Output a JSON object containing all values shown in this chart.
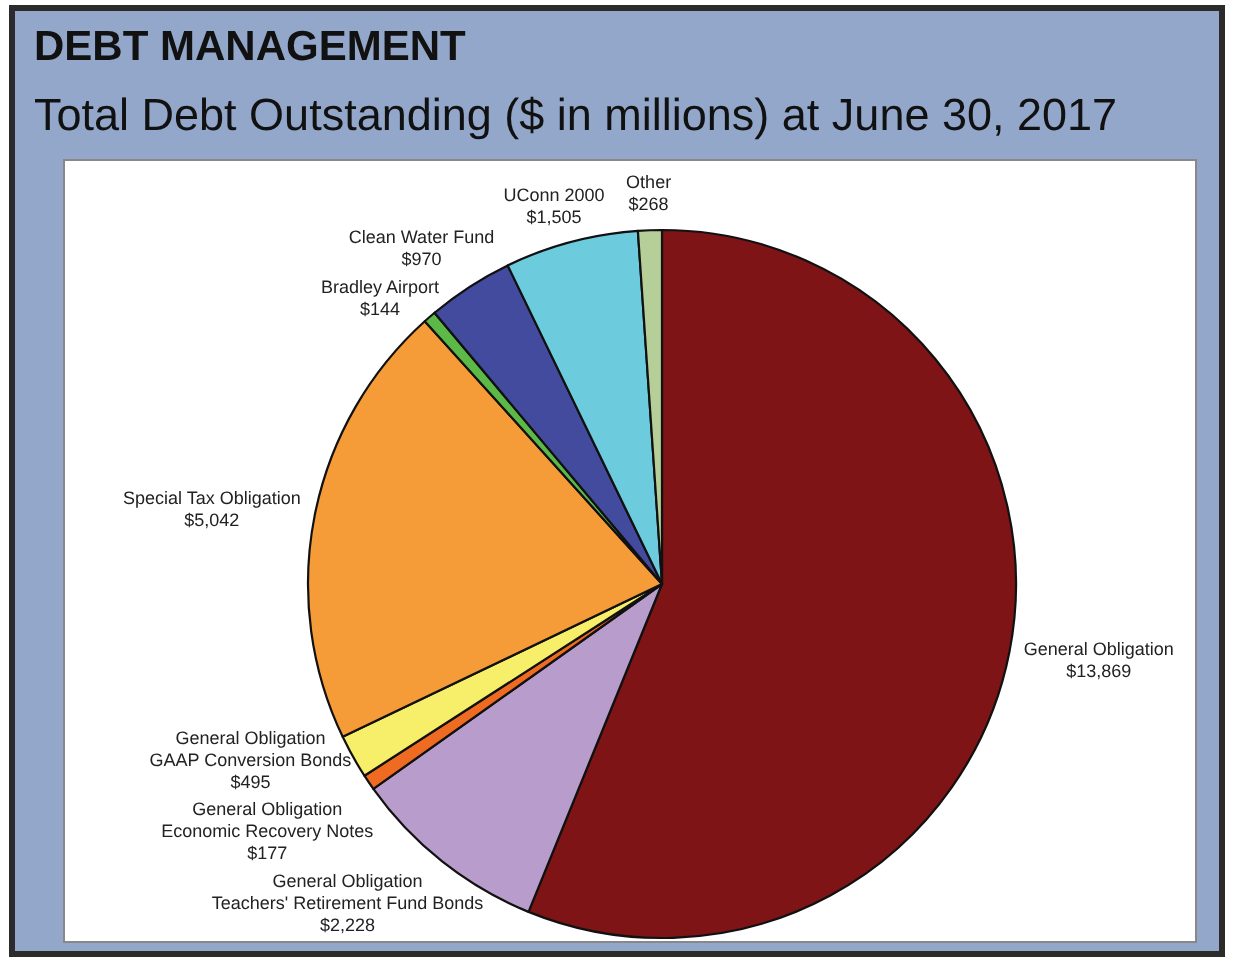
{
  "chart_data": {
    "type": "pie",
    "title": "DEBT MANAGEMENT",
    "subtitle": "Total Debt Outstanding ($ in millions) at June 30, 2017",
    "categories": [
      "General Obligation",
      "General Obligation\nTeachers' Retirement Fund Bonds",
      "General Obligation\nEconomic Recovery Notes",
      "General Obligation\nGAAP Conversion Bonds",
      "Special Tax Obligation",
      "Bradley Airport",
      "Clean Water Fund",
      "UConn 2000",
      "Other"
    ],
    "values": [
      13869,
      2228,
      177,
      495,
      5042,
      144,
      970,
      1505,
      268
    ],
    "value_labels": [
      "$13,869",
      "$2,228",
      "$177",
      "$495",
      "$5,042",
      "$144",
      "$970",
      "$1,505",
      "$268"
    ],
    "colors": [
      "#7f1416",
      "#b89ccb",
      "#ef6b22",
      "#f7ee6a",
      "#f59c38",
      "#5cb947",
      "#424b9e",
      "#6ccbdc",
      "#b6cf98"
    ]
  }
}
